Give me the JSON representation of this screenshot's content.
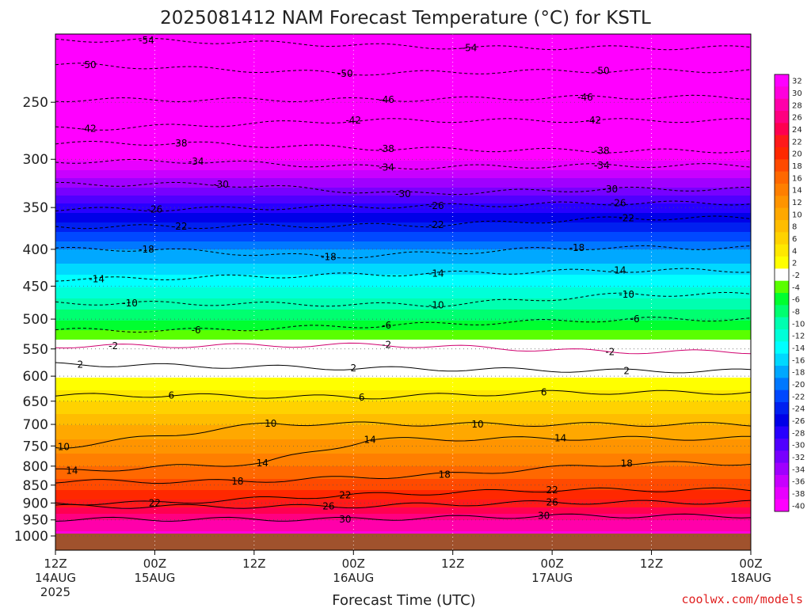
{
  "chart_data": {
    "type": "heatmap",
    "title": "2025081412 NAM Forecast Temperature (°C) for KSTL",
    "xlabel": "Forecast Time (UTC)",
    "ylabel": "",
    "x_ticks": [
      {
        "hour": 0,
        "line1": "12Z",
        "line2": "14AUG",
        "line3": "2025"
      },
      {
        "hour": 12,
        "line1": "00Z",
        "line2": "15AUG",
        "line3": ""
      },
      {
        "hour": 24,
        "line1": "12Z",
        "line2": "",
        "line3": ""
      },
      {
        "hour": 36,
        "line1": "00Z",
        "line2": "16AUG",
        "line3": ""
      },
      {
        "hour": 48,
        "line1": "12Z",
        "line2": "",
        "line3": ""
      },
      {
        "hour": 60,
        "line1": "00Z",
        "line2": "17AUG",
        "line3": ""
      },
      {
        "hour": 72,
        "line1": "12Z",
        "line2": "",
        "line3": ""
      },
      {
        "hour": 84,
        "line1": "00Z",
        "line2": "18AUG",
        "line3": ""
      }
    ],
    "xlim": [
      0,
      84
    ],
    "y_ticks": [
      250,
      300,
      350,
      400,
      450,
      500,
      550,
      600,
      650,
      700,
      750,
      800,
      850,
      900,
      950,
      1000
    ],
    "ylim": [
      200,
      1030
    ],
    "y_scale": "log-pressure",
    "grid": true,
    "colorbar": {
      "placement": "right",
      "levels": [
        32,
        30,
        28,
        26,
        24,
        22,
        20,
        18,
        16,
        14,
        12,
        10,
        8,
        6,
        4,
        2,
        -2,
        -4,
        -6,
        -8,
        -10,
        -12,
        -14,
        -16,
        -18,
        -20,
        -22,
        -24,
        -26,
        -28,
        -30,
        -32,
        -34,
        -36,
        -38,
        -40
      ],
      "colors": [
        "#ff00ff",
        "#ff00dd",
        "#ff00aa",
        "#ff0080",
        "#ff0050",
        "#ff1a1a",
        "#ff2800",
        "#ff4a00",
        "#ff6800",
        "#ff7f00",
        "#ff9400",
        "#ffa800",
        "#ffbd00",
        "#ffd200",
        "#ffe800",
        "#ffff00",
        "#ffffff",
        "#5aff00",
        "#00ff30",
        "#00ff70",
        "#00ffb0",
        "#00ffd8",
        "#00ffff",
        "#00d8ff",
        "#00a8ff",
        "#0078ff",
        "#0048ff",
        "#0020f0",
        "#0000e8",
        "#2800ff",
        "#5000ff",
        "#7800ff",
        "#a000ff",
        "#c800ff",
        "#e800ff",
        "#ff00ff"
      ]
    },
    "levels_hpa": [
      200,
      250,
      300,
      350,
      400,
      450,
      500,
      550,
      600,
      650,
      700,
      750,
      800,
      850,
      900,
      950,
      1000
    ],
    "mean_temperature_c": [
      -56,
      -47,
      -38,
      -27,
      -18,
      -12,
      -6,
      0,
      2,
      6,
      10,
      13,
      16,
      19,
      23,
      28,
      31
    ],
    "contours": [
      {
        "value": -54,
        "labels": [
          {
            "hour": 11,
            "hpa": 205
          },
          {
            "hour": 50,
            "hpa": 210
          }
        ]
      },
      {
        "value": -50,
        "labels": [
          {
            "hour": 4,
            "hpa": 222
          },
          {
            "hour": 35,
            "hpa": 228
          },
          {
            "hour": 66,
            "hpa": 226
          }
        ]
      },
      {
        "value": -46,
        "labels": [
          {
            "hour": 40,
            "hpa": 248
          },
          {
            "hour": 64,
            "hpa": 246
          }
        ]
      },
      {
        "value": -42,
        "labels": [
          {
            "hour": 4,
            "hpa": 272
          },
          {
            "hour": 36,
            "hpa": 265
          },
          {
            "hour": 65,
            "hpa": 265
          }
        ]
      },
      {
        "value": -38,
        "labels": [
          {
            "hour": 15,
            "hpa": 285
          },
          {
            "hour": 40,
            "hpa": 290
          },
          {
            "hour": 66,
            "hpa": 292
          }
        ]
      },
      {
        "value": -34,
        "labels": [
          {
            "hour": 17,
            "hpa": 302
          },
          {
            "hour": 40,
            "hpa": 308
          },
          {
            "hour": 66,
            "hpa": 306
          }
        ]
      },
      {
        "value": -30,
        "labels": [
          {
            "hour": 20,
            "hpa": 325
          },
          {
            "hour": 42,
            "hpa": 335
          },
          {
            "hour": 67,
            "hpa": 330
          }
        ]
      },
      {
        "value": -26,
        "labels": [
          {
            "hour": 12,
            "hpa": 352
          },
          {
            "hour": 46,
            "hpa": 348
          },
          {
            "hour": 68,
            "hpa": 345
          }
        ]
      },
      {
        "value": -22,
        "labels": [
          {
            "hour": 15,
            "hpa": 372
          },
          {
            "hour": 46,
            "hpa": 370
          },
          {
            "hour": 69,
            "hpa": 362
          }
        ]
      },
      {
        "value": -18,
        "labels": [
          {
            "hour": 11,
            "hpa": 400
          },
          {
            "hour": 33,
            "hpa": 410
          },
          {
            "hour": 63,
            "hpa": 398
          }
        ]
      },
      {
        "value": -14,
        "labels": [
          {
            "hour": 5,
            "hpa": 440
          },
          {
            "hour": 46,
            "hpa": 432
          },
          {
            "hour": 68,
            "hpa": 428
          }
        ]
      },
      {
        "value": -10,
        "labels": [
          {
            "hour": 9,
            "hpa": 475
          },
          {
            "hour": 46,
            "hpa": 478
          },
          {
            "hour": 69,
            "hpa": 462
          }
        ]
      },
      {
        "value": -6,
        "labels": [
          {
            "hour": 17,
            "hpa": 518
          },
          {
            "hour": 40,
            "hpa": 510
          },
          {
            "hour": 70,
            "hpa": 500
          }
        ]
      },
      {
        "value": -2,
        "labels": [
          {
            "hour": 7,
            "hpa": 545
          },
          {
            "hour": 40,
            "hpa": 543
          },
          {
            "hour": 67,
            "hpa": 555
          }
        ]
      },
      {
        "value": 2,
        "labels": [
          {
            "hour": 3,
            "hpa": 578
          },
          {
            "hour": 36,
            "hpa": 585
          },
          {
            "hour": 69,
            "hpa": 590
          }
        ]
      },
      {
        "value": 6,
        "labels": [
          {
            "hour": 14,
            "hpa": 638
          },
          {
            "hour": 37,
            "hpa": 642
          },
          {
            "hour": 59,
            "hpa": 632
          }
        ]
      },
      {
        "value": 10,
        "labels": [
          {
            "hour": 1,
            "hpa": 752
          },
          {
            "hour": 26,
            "hpa": 698
          },
          {
            "hour": 51,
            "hpa": 700
          }
        ]
      },
      {
        "value": 14,
        "labels": [
          {
            "hour": 2,
            "hpa": 812
          },
          {
            "hour": 25,
            "hpa": 792
          },
          {
            "hour": 38,
            "hpa": 735
          },
          {
            "hour": 61,
            "hpa": 732
          }
        ]
      },
      {
        "value": 18,
        "labels": [
          {
            "hour": 22,
            "hpa": 840
          },
          {
            "hour": 47,
            "hpa": 822
          },
          {
            "hour": 69,
            "hpa": 793
          }
        ]
      },
      {
        "value": 22,
        "labels": [
          {
            "hour": 12,
            "hpa": 900
          },
          {
            "hour": 35,
            "hpa": 878
          },
          {
            "hour": 60,
            "hpa": 863
          }
        ]
      },
      {
        "value": 26,
        "labels": [
          {
            "hour": 33,
            "hpa": 910
          },
          {
            "hour": 60,
            "hpa": 898
          }
        ]
      },
      {
        "value": 30,
        "labels": [
          {
            "hour": 35,
            "hpa": 948
          },
          {
            "hour": 59,
            "hpa": 938
          }
        ]
      }
    ]
  },
  "credit": "coolwx.com/models"
}
